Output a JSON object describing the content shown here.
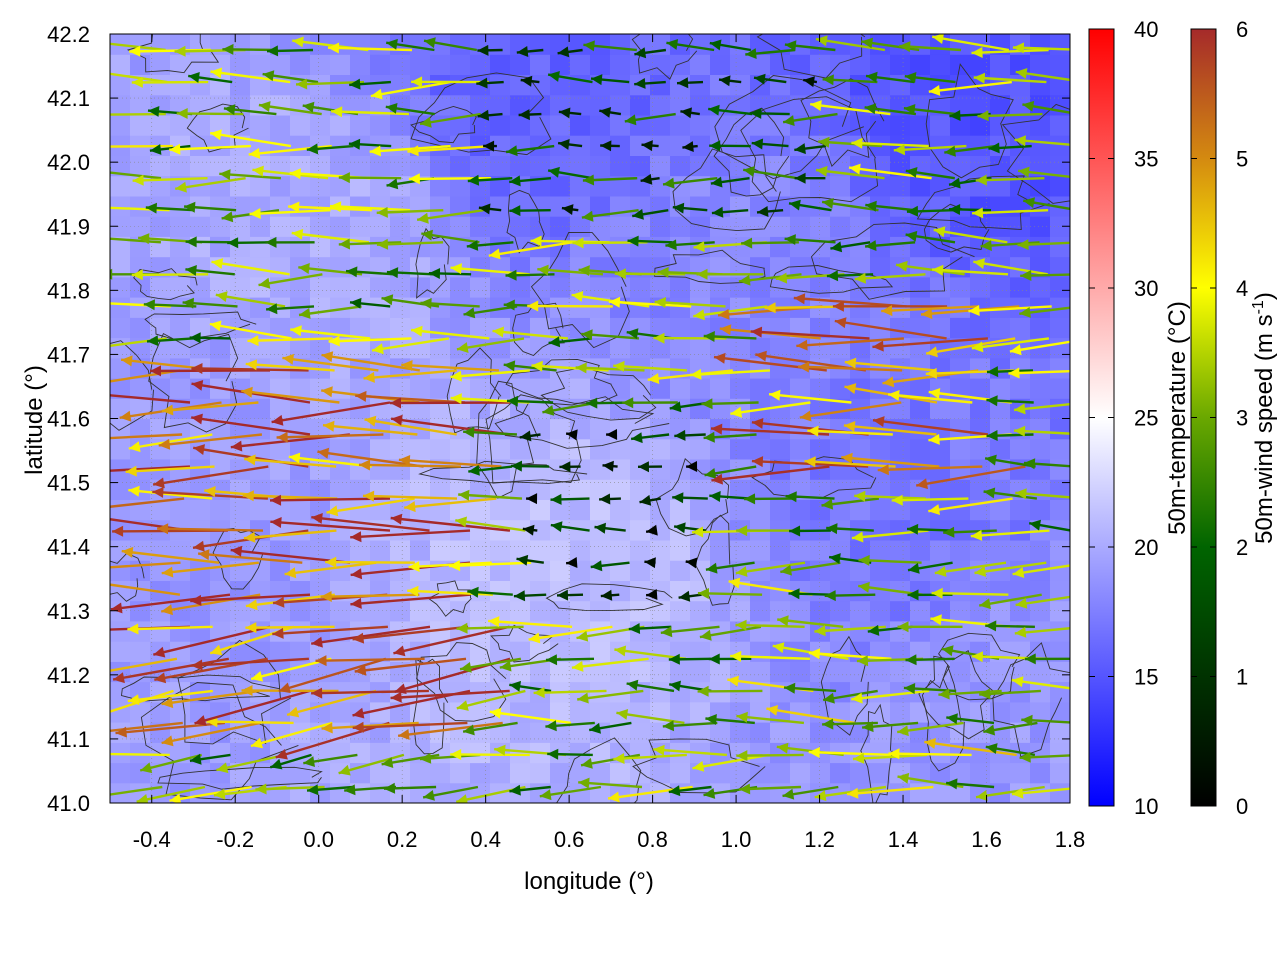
{
  "chart_data": {
    "type": "heatmap",
    "title": "",
    "xlabel": "longitude (°)",
    "ylabel": "latitude (°)",
    "xlim": [
      -0.5,
      1.8
    ],
    "ylim": [
      41.0,
      42.2
    ],
    "x_ticks": [
      "-0.4",
      "-0.2",
      "0.0",
      "0.2",
      "0.4",
      "0.6",
      "0.8",
      "1.0",
      "1.2",
      "1.4",
      "1.6",
      "1.8"
    ],
    "x_tick_values": [
      -0.4,
      -0.2,
      0.0,
      0.2,
      0.4,
      0.6,
      0.8,
      1.0,
      1.2,
      1.4,
      1.6,
      1.8
    ],
    "y_ticks": [
      "41.0",
      "41.1",
      "41.2",
      "41.3",
      "41.4",
      "41.5",
      "41.6",
      "41.7",
      "41.8",
      "41.9",
      "42.0",
      "42.1",
      "42.2"
    ],
    "y_tick_values": [
      41.0,
      41.1,
      41.2,
      41.3,
      41.4,
      41.5,
      41.6,
      41.7,
      41.8,
      41.9,
      42.0,
      42.1,
      42.2
    ],
    "grid": true,
    "field": {
      "name": "50m-temperature",
      "unit": "°C",
      "range": [
        10,
        40
      ],
      "approx_values": [
        {
          "lon": -0.4,
          "lat": 41.5,
          "value": 19
        },
        {
          "lon": 0.0,
          "lat": 41.9,
          "value": 20
        },
        {
          "lon": 0.5,
          "lat": 42.1,
          "value": 16
        },
        {
          "lon": 0.6,
          "lat": 41.4,
          "value": 21
        },
        {
          "lon": 1.0,
          "lat": 41.8,
          "value": 18
        },
        {
          "lon": 1.4,
          "lat": 41.5,
          "value": 17
        },
        {
          "lon": 1.6,
          "lat": 42.1,
          "value": 15
        },
        {
          "lon": 1.7,
          "lat": 41.1,
          "value": 19
        }
      ]
    },
    "wind": {
      "name": "50m-wind speed",
      "unit": "m s-1",
      "speed_range": [
        0,
        6
      ],
      "prevailing_direction": "from east (westward-pointing vectors)",
      "regional_speeds": [
        {
          "region": "west lon<0.4, lat 41.1-41.7",
          "speed": 5.5
        },
        {
          "region": "center lon 0.5-0.9, lat 41.3-41.6",
          "speed": 0.5
        },
        {
          "region": "north lon 0.4-1.2, lat 41.9-42.2",
          "speed": 1.5
        },
        {
          "region": "east lon 1.0-1.6, lat 41.5-41.8",
          "speed": 5.0
        },
        {
          "region": "southeast lon 1.0-1.8, lat 41.0-41.2",
          "speed": 3.5
        }
      ]
    },
    "colorbars": [
      {
        "label": "50m-temperature (°C)",
        "ticks": [
          "10",
          "15",
          "20",
          "25",
          "30",
          "35",
          "40"
        ],
        "tick_values": [
          10,
          15,
          20,
          25,
          30,
          35,
          40
        ],
        "range": [
          10,
          40
        ],
        "colors": [
          "#0000ff",
          "#ffffff",
          "#ff0000"
        ]
      },
      {
        "label_prefix": "50m-wind speed (m s",
        "label_superscript": "-1",
        "label_suffix": ")",
        "ticks": [
          "0",
          "1",
          "2",
          "3",
          "4",
          "5",
          "6"
        ],
        "tick_values": [
          0,
          1,
          2,
          3,
          4,
          5,
          6
        ],
        "range": [
          0,
          6
        ],
        "colors": [
          "#000000",
          "#006400",
          "#6aa800",
          "#ffff00",
          "#d48a10",
          "#a52a2a"
        ]
      }
    ]
  }
}
